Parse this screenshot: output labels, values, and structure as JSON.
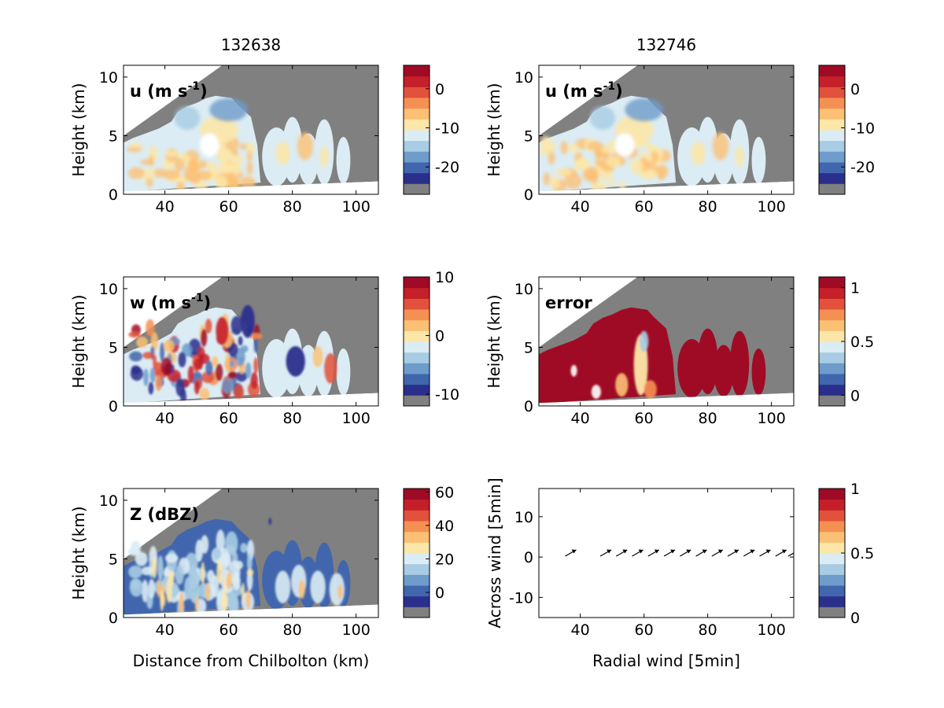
{
  "colors": {
    "no_data_gray": "#808080",
    "diverging_scale": [
      "#2b2f8c",
      "#4166ad",
      "#6e9ccb",
      "#a7cce3",
      "#dbecf4",
      "#fde7a8",
      "#fcc074",
      "#f59053",
      "#e2513b",
      "#c51f2a",
      "#9f0b25"
    ]
  },
  "chart_data": [
    {
      "id": "u-left",
      "type": "heatmap",
      "column_title": "132638",
      "label": "u (m s",
      "label_sup": "-1",
      "label_end": ")",
      "ylabel": "Height (km)",
      "xlabel": "",
      "xlim": [
        27,
        107
      ],
      "ylim": [
        0,
        11
      ],
      "xticks": [
        40,
        60,
        80,
        100
      ],
      "yticks": [
        0,
        5,
        10
      ],
      "colorbar": {
        "min": -27,
        "max": 6,
        "ticks": [
          0,
          -10,
          -20
        ]
      }
    },
    {
      "id": "u-right",
      "type": "heatmap",
      "column_title": "132746",
      "label": "u (m s",
      "label_sup": "-1",
      "label_end": ")",
      "ylabel": "Height (km)",
      "xlabel": "",
      "xlim": [
        27,
        107
      ],
      "ylim": [
        0,
        11
      ],
      "xticks": [
        40,
        60,
        80,
        100
      ],
      "yticks": [
        0,
        5,
        10
      ],
      "colorbar": {
        "min": -27,
        "max": 6,
        "ticks": [
          0,
          -10,
          -20
        ]
      }
    },
    {
      "id": "w-left",
      "type": "heatmap",
      "label": "w (m s",
      "label_sup": "-1",
      "label_end": ")",
      "ylabel": "Height (km)",
      "xlabel": "",
      "xlim": [
        27,
        107
      ],
      "ylim": [
        0,
        11
      ],
      "xticks": [
        40,
        60,
        80,
        100
      ],
      "yticks": [
        0,
        5,
        10
      ],
      "colorbar": {
        "min": -12,
        "max": 10,
        "ticks": [
          10,
          0,
          -10
        ]
      }
    },
    {
      "id": "error-right",
      "type": "heatmap",
      "label": "error",
      "ylabel": "Height (km)",
      "xlabel": "",
      "xlim": [
        27,
        107
      ],
      "ylim": [
        0,
        11
      ],
      "xticks": [
        40,
        60,
        80,
        100
      ],
      "yticks": [
        0,
        5,
        10
      ],
      "colorbar": {
        "min": -0.1,
        "max": 1.1,
        "ticks": [
          1,
          0.5,
          0
        ]
      }
    },
    {
      "id": "z-left",
      "type": "heatmap",
      "label": "Z (dBZ)",
      "ylabel": "Height (km)",
      "xlabel": "Distance from Chilbolton (km)",
      "xlim": [
        27,
        107
      ],
      "ylim": [
        0,
        11
      ],
      "xticks": [
        40,
        60,
        80,
        100
      ],
      "yticks": [
        0,
        5,
        10
      ],
      "colorbar": {
        "min": -15,
        "max": 62,
        "ticks": [
          60,
          40,
          20,
          0
        ]
      }
    },
    {
      "id": "wind-right",
      "type": "scatter",
      "label": "",
      "ylabel": "Across wind [5min]",
      "xlabel": "Radial wind [5min]",
      "xlim": [
        27,
        107
      ],
      "ylim": [
        -15,
        17
      ],
      "xticks": [
        40,
        60,
        80,
        100
      ],
      "yticks": [
        -10,
        0,
        10
      ],
      "arrows_x": [
        37,
        48,
        53,
        58,
        63,
        68,
        73,
        78,
        83,
        88,
        93,
        98,
        103,
        107
      ],
      "arrows_y": 1,
      "colorbar": {
        "min": 0,
        "max": 1,
        "ticks": [
          1,
          0.5,
          0
        ]
      }
    }
  ]
}
